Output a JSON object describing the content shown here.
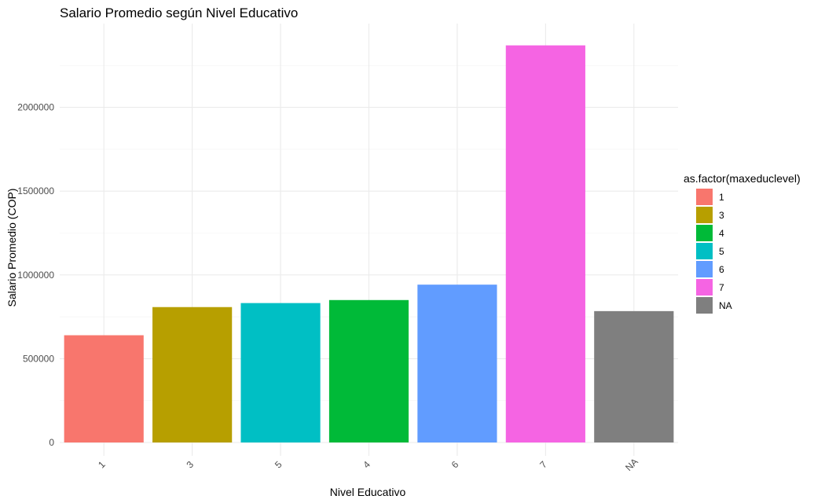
{
  "chart_data": {
    "type": "bar",
    "title": "Salario Promedio según Nivel Educativo",
    "xlabel": "Nivel Educativo",
    "ylabel": "Salario Promedio (COP)",
    "categories": [
      "1",
      "3",
      "5",
      "4",
      "6",
      "7",
      "NA"
    ],
    "values": [
      640000,
      808000,
      832000,
      850000,
      942000,
      2370000,
      784000
    ],
    "colors": [
      "#F8766D",
      "#B79F00",
      "#00BFC4",
      "#00BA38",
      "#619CFF",
      "#F564E3",
      "#7F7F7F"
    ],
    "ylim": [
      0,
      2500000
    ],
    "yticks": [
      0,
      500000,
      1000000,
      1500000,
      2000000
    ],
    "ytick_labels": [
      "0",
      "500000",
      "1000000",
      "1500000",
      "2000000"
    ],
    "grid": true,
    "legend": {
      "title": "as.factor(maxeduclevel)",
      "position": "right",
      "items": [
        {
          "label": "1",
          "color": "#F8766D"
        },
        {
          "label": "3",
          "color": "#B79F00"
        },
        {
          "label": "4",
          "color": "#00BA38"
        },
        {
          "label": "5",
          "color": "#00BFC4"
        },
        {
          "label": "6",
          "color": "#619CFF"
        },
        {
          "label": "7",
          "color": "#F564E3"
        },
        {
          "label": "NA",
          "color": "#7F7F7F"
        }
      ]
    }
  }
}
